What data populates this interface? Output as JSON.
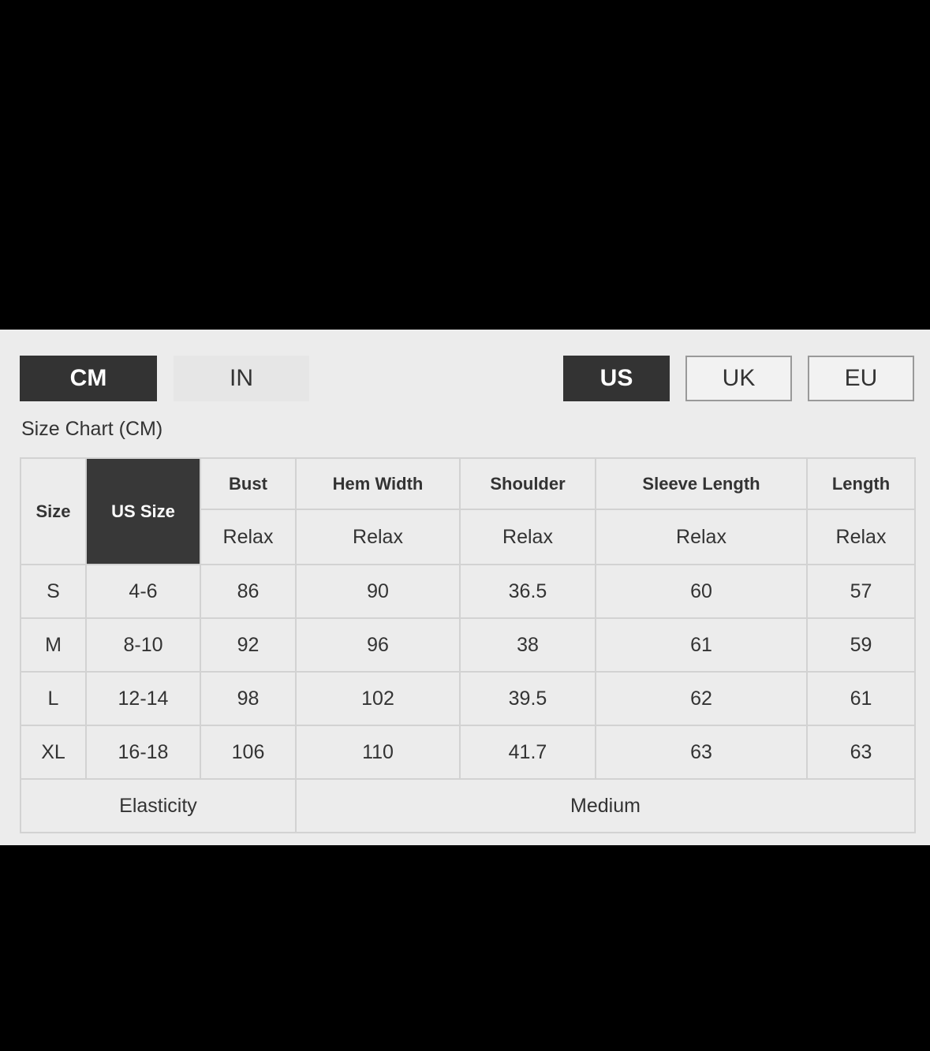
{
  "unit_tabs": [
    {
      "label": "CM",
      "active": true
    },
    {
      "label": "IN",
      "active": false
    }
  ],
  "region_tabs": [
    {
      "label": "US",
      "active": true
    },
    {
      "label": "UK",
      "active": false
    },
    {
      "label": "EU",
      "active": false
    }
  ],
  "title": "Size Chart (CM)",
  "table": {
    "size_header": "Size",
    "us_size_header": "US Size",
    "columns": [
      {
        "name": "Bust",
        "fit": "Relax"
      },
      {
        "name": "Hem Width",
        "fit": "Relax"
      },
      {
        "name": "Shoulder",
        "fit": "Relax"
      },
      {
        "name": "Sleeve Length",
        "fit": "Relax"
      },
      {
        "name": "Length",
        "fit": "Relax"
      }
    ],
    "rows": [
      [
        "S",
        "4-6",
        "86",
        "90",
        "36.5",
        "60",
        "57"
      ],
      [
        "M",
        "8-10",
        "92",
        "96",
        "38",
        "61",
        "59"
      ],
      [
        "L",
        "12-14",
        "98",
        "102",
        "39.5",
        "62",
        "61"
      ],
      [
        "XL",
        "16-18",
        "106",
        "110",
        "41.7",
        "63",
        "63"
      ]
    ],
    "elasticity_label": "Elasticity",
    "elasticity_value": "Medium"
  },
  "colors": {
    "active": "#333333",
    "panel": "#ececec",
    "border": "#d2d2d2"
  }
}
